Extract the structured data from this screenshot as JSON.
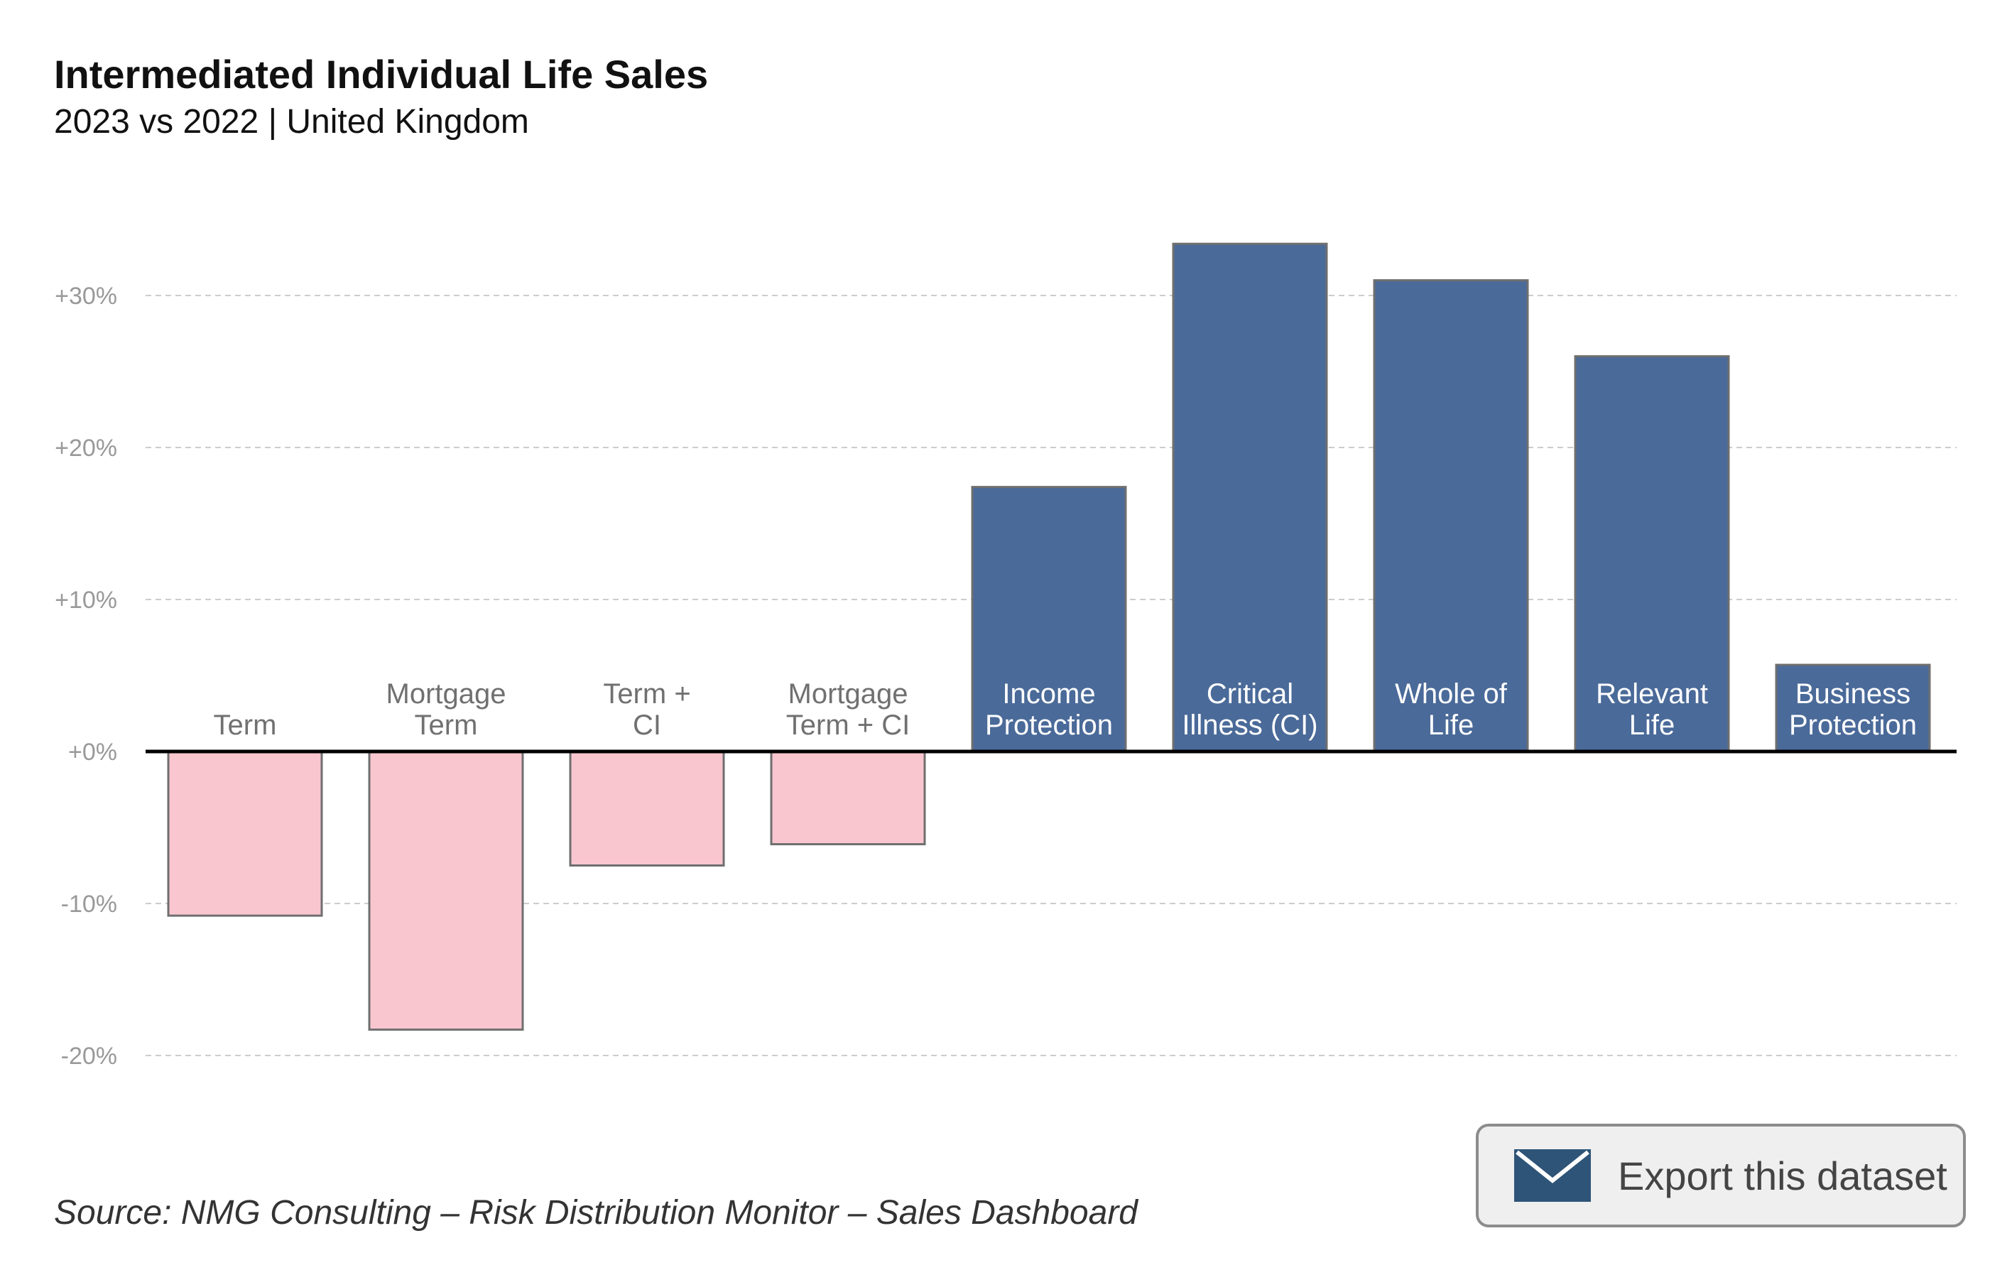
{
  "header": {
    "title": "Intermediated Individual Life Sales",
    "subtitle": "2023 vs 2022 | United Kingdom"
  },
  "footer": {
    "source": "Source: NMG Consulting – Risk Distribution Monitor – Sales Dashboard"
  },
  "export_button": {
    "label": "Export this dataset",
    "icon": "envelope-icon"
  },
  "colors": {
    "positive_bar": "#4a6a99",
    "negative_bar": "#f9c6cf",
    "bar_outline": "#6f6f6f",
    "grid": "#cccccc",
    "tick_label": "#999999",
    "category_label_on_negative": "#707070",
    "category_label_on_positive": "#ffffff",
    "export_icon": "#2e5478"
  },
  "chart_data": {
    "type": "bar",
    "categories": [
      [
        "Term"
      ],
      [
        "Mortgage",
        "Term"
      ],
      [
        "Term +",
        "CI"
      ],
      [
        "Mortgage",
        "Term + CI"
      ],
      [
        "Income",
        "Protection"
      ],
      [
        "Critical",
        "Illness (CI)"
      ],
      [
        "Whole of",
        "Life"
      ],
      [
        "Relevant",
        "Life"
      ],
      [
        "Business",
        "Protection"
      ]
    ],
    "values": [
      -10.8,
      -18.3,
      -7.5,
      -6.1,
      17.4,
      33.4,
      31.0,
      26.0,
      5.7
    ],
    "y_ticks": [
      -20,
      -10,
      0,
      10,
      20,
      30
    ],
    "y_tick_labels": [
      "-20%",
      "-10%",
      "+0%",
      "+10%",
      "+20%",
      "+30%"
    ],
    "ylim": [
      -20,
      30
    ],
    "grid": "horizontal dashed",
    "legend": "none"
  }
}
